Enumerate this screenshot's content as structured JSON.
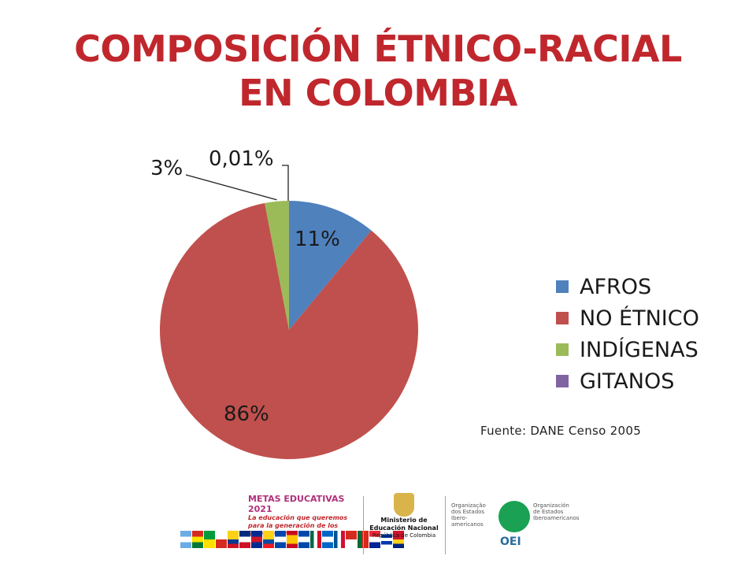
{
  "title": "COMPOSICIÓN ÉTNICO-RACIAL EN COLOMBIA",
  "source": "Fuente: DANE Censo 2005",
  "colors": {
    "title": "#c0272d",
    "afros": "#4f81bd",
    "no_etnico": "#c0504d",
    "indigenas": "#9bbb59",
    "gitanos": "#8064a2"
  },
  "chart_data": {
    "type": "pie",
    "title": "COMPOSICIÓN ÉTNICO-RACIAL EN COLOMBIA",
    "categories": [
      "AFROS",
      "NO ÉTNICO",
      "INDÍGENAS",
      "GITANOS"
    ],
    "values": [
      11,
      86,
      3,
      0.01
    ],
    "data_labels": [
      "11%",
      "86%",
      "3%",
      "0,01%"
    ],
    "legend_position": "right"
  },
  "footer": {
    "metas_title": "METAS EDUCATIVAS 2021",
    "metas_subtitle": "La educación que queremos para la generación de los Bicentenarios",
    "ministry_title": "Ministerio de Educación Nacional",
    "ministry_subtitle": "República de Colombia",
    "oei_left": "Organização dos Estados Ibero-americanos",
    "oei_right": "Organización de Estados Iberoamericanos",
    "oei_word": "OEI"
  }
}
